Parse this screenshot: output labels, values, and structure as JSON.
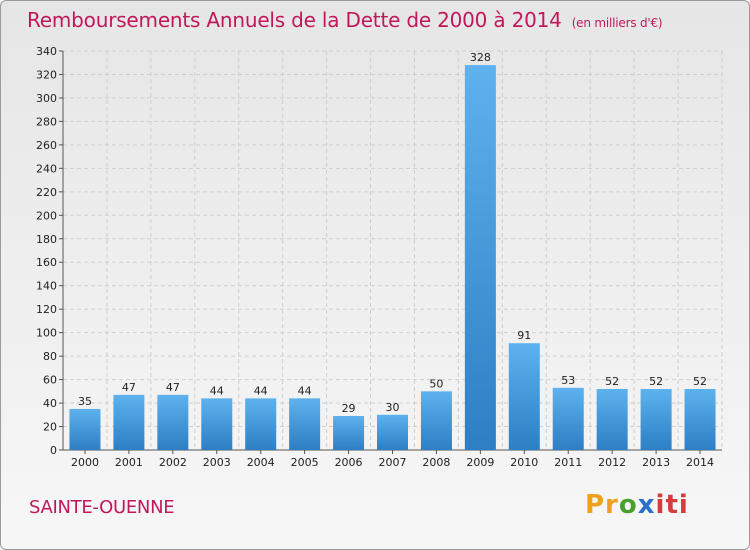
{
  "title": "Remboursements Annuels de la Dette de 2000 à 2014",
  "subtitle": "(en milliers d'€)",
  "commune": "SAINTE-OUENNE",
  "logo": {
    "parts": [
      "Pr",
      "o",
      "x",
      "iti"
    ],
    "colors": [
      "#f0a020",
      "#4aa02c",
      "#2a6fc9",
      "#d23c3c"
    ]
  },
  "chart_data": {
    "type": "bar",
    "categories": [
      "2000",
      "2001",
      "2002",
      "2003",
      "2004",
      "2005",
      "2006",
      "2007",
      "2008",
      "2009",
      "2010",
      "2011",
      "2012",
      "2013",
      "2014"
    ],
    "values": [
      35,
      47,
      47,
      44,
      44,
      44,
      29,
      30,
      50,
      328,
      91,
      53,
      52,
      52,
      52
    ],
    "ylim": [
      0,
      340
    ],
    "yticks": [
      0,
      20,
      40,
      60,
      80,
      100,
      120,
      140,
      160,
      180,
      200,
      220,
      240,
      260,
      280,
      300,
      320,
      340
    ],
    "grid": true,
    "bar_color": "#3f95d8",
    "data_labels": true
  }
}
